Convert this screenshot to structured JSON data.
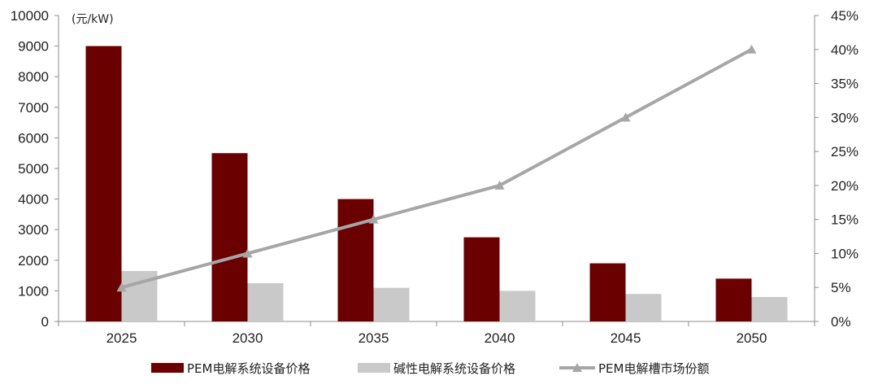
{
  "chart_data": {
    "type": "bar",
    "categories": [
      "2025",
      "2030",
      "2035",
      "2040",
      "2045",
      "2050"
    ],
    "unit_label": "(元/kW)",
    "series": [
      {
        "name": "PEM电解系统设备价格",
        "type": "bar",
        "axis": "left",
        "color": "#6b0000",
        "values": [
          9000,
          5500,
          4000,
          2750,
          1900,
          1400
        ]
      },
      {
        "name": "碱性电解系统设备价格",
        "type": "bar",
        "axis": "left",
        "color": "#c9c9c9",
        "values": [
          1650,
          1250,
          1100,
          1000,
          900,
          800
        ]
      },
      {
        "name": "PEM电解槽市场份额",
        "type": "line",
        "axis": "right",
        "color": "#a6a6a6",
        "values": [
          5,
          10,
          15,
          20,
          30,
          40
        ]
      }
    ],
    "y_left": {
      "min": 0,
      "max": 10000,
      "step": 1000
    },
    "y_right": {
      "min": 0,
      "max": 45,
      "step": 5,
      "suffix": "%"
    },
    "legend": {
      "position": "bottom"
    },
    "grid": false
  }
}
